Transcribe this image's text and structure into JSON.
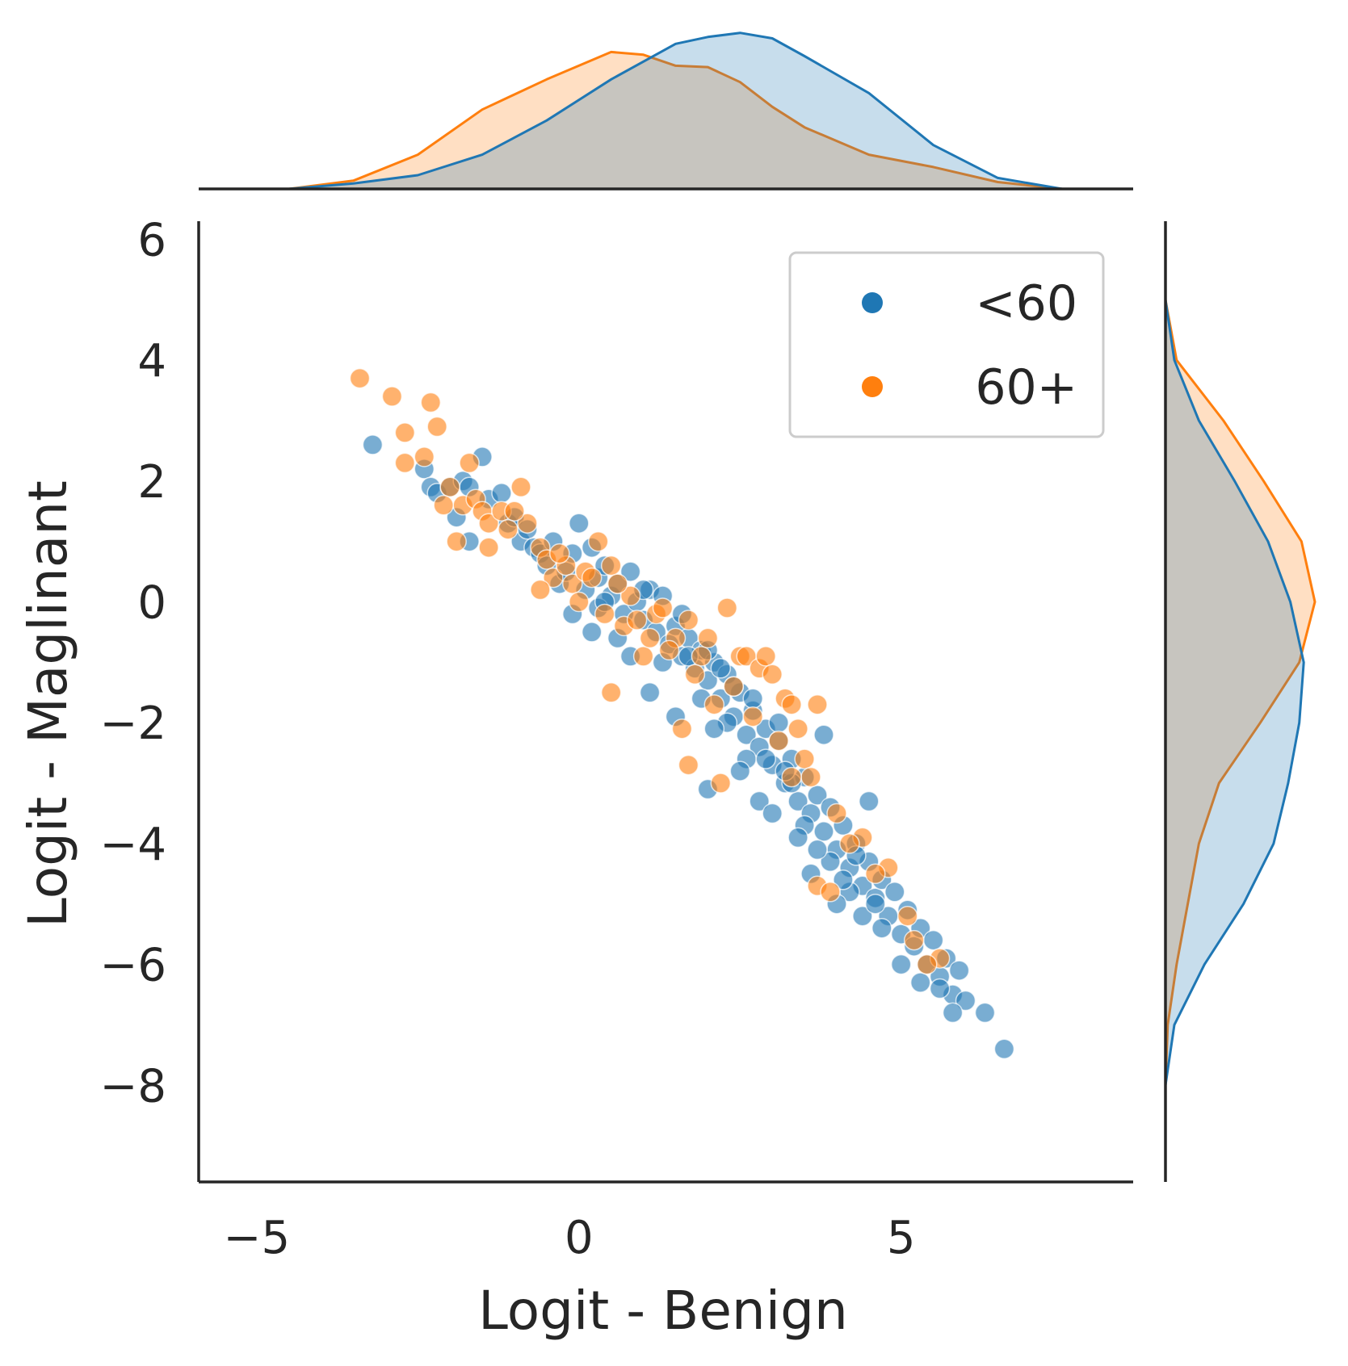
{
  "chart_data": {
    "type": "scatter",
    "title": "",
    "xlabel": "Logit - Benign",
    "ylabel": "Logit - Maglinant",
    "xlim": [
      -5.9,
      8.6
    ],
    "ylim": [
      -9.6,
      6.3
    ],
    "xticks": [
      -5,
      0,
      5
    ],
    "xtick_labels": [
      "−5",
      "0",
      "5"
    ],
    "yticks": [
      6,
      4,
      2,
      0,
      -2,
      -4,
      -6,
      -8
    ],
    "ytick_labels": [
      "6",
      "4",
      "2",
      "0",
      "−2",
      "−4",
      "−6",
      "−8"
    ],
    "grid": false,
    "legend_position": "top-right",
    "marginals": "kde",
    "series": [
      {
        "name": "<60",
        "color": "#1f77b4",
        "points": [
          [
            -3.2,
            2.6
          ],
          [
            -2.4,
            2.2
          ],
          [
            -2.3,
            1.9
          ],
          [
            -2.2,
            1.8
          ],
          [
            -2.0,
            1.9
          ],
          [
            -1.9,
            1.4
          ],
          [
            -1.8,
            2.0
          ],
          [
            -1.7,
            1.9
          ],
          [
            -1.5,
            2.4
          ],
          [
            -1.7,
            1.0
          ],
          [
            -1.4,
            1.7
          ],
          [
            -1.2,
            1.8
          ],
          [
            -1.1,
            1.3
          ],
          [
            -1.0,
            1.4
          ],
          [
            -0.9,
            1.0
          ],
          [
            -0.8,
            1.2
          ],
          [
            -0.7,
            0.9
          ],
          [
            -0.6,
            0.8
          ],
          [
            -0.5,
            0.6
          ],
          [
            -0.4,
            1.0
          ],
          [
            -0.3,
            0.3
          ],
          [
            -0.2,
            0.5
          ],
          [
            -0.1,
            0.8
          ],
          [
            0.0,
            1.3
          ],
          [
            0.1,
            0.2
          ],
          [
            0.2,
            0.9
          ],
          [
            0.3,
            0.4
          ],
          [
            0.4,
            0.6
          ],
          [
            0.5,
            0.1
          ],
          [
            0.6,
            0.3
          ],
          [
            0.7,
            -0.2
          ],
          [
            0.8,
            0.5
          ],
          [
            0.9,
            0.0
          ],
          [
            1.0,
            -0.3
          ],
          [
            1.1,
            0.2
          ],
          [
            1.2,
            -0.5
          ],
          [
            1.3,
            0.1
          ],
          [
            1.4,
            -0.7
          ],
          [
            1.5,
            -0.4
          ],
          [
            1.6,
            -0.9
          ],
          [
            1.7,
            -0.6
          ],
          [
            1.8,
            -1.1
          ],
          [
            1.9,
            -0.8
          ],
          [
            2.0,
            -1.3
          ],
          [
            2.1,
            -1.0
          ],
          [
            2.2,
            -1.6
          ],
          [
            2.3,
            -1.2
          ],
          [
            2.4,
            -1.9
          ],
          [
            2.5,
            -1.5
          ],
          [
            2.6,
            -2.2
          ],
          [
            2.7,
            -1.8
          ],
          [
            2.8,
            -2.4
          ],
          [
            2.9,
            -2.1
          ],
          [
            3.0,
            -2.7
          ],
          [
            3.1,
            -2.3
          ],
          [
            3.2,
            -3.0
          ],
          [
            3.3,
            -2.6
          ],
          [
            3.4,
            -3.3
          ],
          [
            3.5,
            -2.9
          ],
          [
            3.6,
            -3.5
          ],
          [
            3.7,
            -3.2
          ],
          [
            3.8,
            -3.8
          ],
          [
            3.9,
            -3.4
          ],
          [
            4.0,
            -4.1
          ],
          [
            4.1,
            -3.7
          ],
          [
            4.2,
            -4.4
          ],
          [
            4.3,
            -4.0
          ],
          [
            4.4,
            -4.7
          ],
          [
            4.5,
            -4.3
          ],
          [
            4.6,
            -4.9
          ],
          [
            4.7,
            -4.6
          ],
          [
            4.8,
            -5.2
          ],
          [
            4.9,
            -4.8
          ],
          [
            5.0,
            -5.5
          ],
          [
            5.1,
            -5.1
          ],
          [
            5.2,
            -5.7
          ],
          [
            5.3,
            -5.4
          ],
          [
            5.4,
            -6.0
          ],
          [
            5.5,
            -5.6
          ],
          [
            5.6,
            -6.2
          ],
          [
            5.7,
            -5.9
          ],
          [
            5.8,
            -6.5
          ],
          [
            5.9,
            -6.1
          ],
          [
            6.0,
            -6.6
          ],
          [
            6.3,
            -6.8
          ],
          [
            6.6,
            -7.4
          ],
          [
            5.0,
            -6.0
          ],
          [
            4.5,
            -3.3
          ],
          [
            3.8,
            -2.2
          ],
          [
            1.1,
            -1.5
          ],
          [
            0.6,
            -0.6
          ],
          [
            1.5,
            -1.9
          ],
          [
            2.3,
            -2.0
          ],
          [
            2.6,
            -2.6
          ],
          [
            2.8,
            -3.3
          ],
          [
            3.0,
            -3.5
          ],
          [
            3.3,
            -3.0
          ],
          [
            3.5,
            -3.7
          ],
          [
            3.9,
            -4.3
          ],
          [
            4.2,
            -4.8
          ],
          [
            4.4,
            -5.2
          ],
          [
            4.7,
            -5.4
          ],
          [
            2.0,
            -0.8
          ],
          [
            2.4,
            -1.4
          ],
          [
            2.7,
            -1.6
          ],
          [
            3.1,
            -2.0
          ],
          [
            1.6,
            -0.2
          ],
          [
            1.0,
            0.2
          ],
          [
            0.3,
            -0.1
          ],
          [
            -0.1,
            -0.2
          ],
          [
            0.2,
            -0.5
          ],
          [
            0.8,
            -0.9
          ],
          [
            1.3,
            -1.0
          ],
          [
            1.9,
            -1.6
          ],
          [
            2.1,
            -2.1
          ],
          [
            2.5,
            -2.8
          ],
          [
            3.4,
            -3.9
          ],
          [
            3.7,
            -4.1
          ],
          [
            4.1,
            -4.6
          ],
          [
            4.6,
            -5.0
          ],
          [
            5.3,
            -6.3
          ],
          [
            5.6,
            -6.4
          ],
          [
            5.8,
            -6.8
          ],
          [
            3.6,
            -4.5
          ],
          [
            2.0,
            -3.1
          ],
          [
            4.0,
            -5.0
          ],
          [
            0.4,
            0.0
          ],
          [
            1.7,
            -0.9
          ],
          [
            2.2,
            -1.1
          ],
          [
            2.9,
            -2.6
          ],
          [
            3.2,
            -2.8
          ],
          [
            4.3,
            -4.2
          ]
        ]
      },
      {
        "name": "60+",
        "color": "#ff7f0e",
        "points": [
          [
            -3.4,
            3.7
          ],
          [
            -2.9,
            3.4
          ],
          [
            -2.3,
            3.3
          ],
          [
            -2.2,
            2.9
          ],
          [
            -2.7,
            2.8
          ],
          [
            -2.7,
            2.3
          ],
          [
            -2.4,
            2.4
          ],
          [
            -2.0,
            1.9
          ],
          [
            -1.8,
            1.6
          ],
          [
            -1.7,
            2.3
          ],
          [
            -1.6,
            1.7
          ],
          [
            -1.5,
            1.5
          ],
          [
            -1.4,
            1.3
          ],
          [
            -1.2,
            1.5
          ],
          [
            -1.1,
            1.2
          ],
          [
            -0.9,
            1.9
          ],
          [
            -0.8,
            1.3
          ],
          [
            -0.6,
            0.9
          ],
          [
            -0.5,
            0.7
          ],
          [
            -0.4,
            0.4
          ],
          [
            -0.2,
            0.6
          ],
          [
            -0.1,
            0.3
          ],
          [
            0.0,
            0.0
          ],
          [
            0.1,
            0.5
          ],
          [
            0.3,
            1.0
          ],
          [
            0.4,
            -0.2
          ],
          [
            0.5,
            0.6
          ],
          [
            0.7,
            -0.4
          ],
          [
            0.8,
            0.1
          ],
          [
            0.9,
            -0.3
          ],
          [
            1.2,
            -0.2
          ],
          [
            1.5,
            -0.6
          ],
          [
            1.7,
            -0.3
          ],
          [
            1.9,
            -0.9
          ],
          [
            2.0,
            -0.6
          ],
          [
            2.3,
            -0.1
          ],
          [
            2.5,
            -0.9
          ],
          [
            2.6,
            -0.9
          ],
          [
            2.8,
            -1.1
          ],
          [
            2.9,
            -0.9
          ],
          [
            3.0,
            -1.2
          ],
          [
            3.2,
            -1.6
          ],
          [
            3.3,
            -1.7
          ],
          [
            3.4,
            -2.1
          ],
          [
            3.5,
            -2.6
          ],
          [
            3.6,
            -2.9
          ],
          [
            3.7,
            -1.7
          ],
          [
            4.0,
            -3.5
          ],
          [
            4.4,
            -3.9
          ],
          [
            4.8,
            -4.4
          ],
          [
            3.7,
            -4.7
          ],
          [
            3.9,
            -4.8
          ],
          [
            4.6,
            -4.5
          ],
          [
            5.1,
            -5.2
          ],
          [
            5.2,
            -5.6
          ],
          [
            5.6,
            -5.9
          ],
          [
            2.2,
            -3.0
          ],
          [
            1.7,
            -2.7
          ],
          [
            1.6,
            -2.1
          ],
          [
            1.0,
            -0.9
          ],
          [
            0.5,
            -1.5
          ],
          [
            -0.6,
            0.2
          ],
          [
            -1.4,
            0.9
          ],
          [
            -1.9,
            1.0
          ],
          [
            -0.3,
            0.8
          ],
          [
            0.2,
            0.4
          ],
          [
            0.6,
            0.3
          ],
          [
            1.1,
            -0.6
          ],
          [
            1.4,
            -0.8
          ],
          [
            1.8,
            -1.2
          ],
          [
            2.4,
            -1.4
          ],
          [
            2.7,
            -1.9
          ],
          [
            3.1,
            -2.3
          ],
          [
            3.3,
            -2.9
          ],
          [
            4.2,
            -4.0
          ],
          [
            5.4,
            -6.0
          ],
          [
            2.1,
            -1.7
          ],
          [
            1.3,
            -0.1
          ],
          [
            -1.0,
            1.5
          ],
          [
            -2.1,
            1.6
          ]
        ]
      }
    ],
    "top_marginal_kde": {
      "<60": {
        "x": [
          -4.5,
          -3.5,
          -2.5,
          -1.5,
          -0.5,
          0.5,
          1.5,
          2.0,
          2.5,
          3.0,
          3.5,
          4.5,
          5.5,
          6.5,
          7.5
        ],
        "density": [
          0.0,
          0.004,
          0.01,
          0.025,
          0.05,
          0.08,
          0.106,
          0.111,
          0.114,
          0.11,
          0.097,
          0.07,
          0.032,
          0.008,
          0.0
        ]
      },
      "60+": {
        "x": [
          -4.5,
          -3.5,
          -2.5,
          -1.5,
          -0.5,
          0.5,
          1.0,
          1.5,
          2.0,
          2.5,
          3.0,
          3.5,
          4.5,
          5.5,
          6.5,
          7.5
        ],
        "density": [
          0.0,
          0.006,
          0.025,
          0.058,
          0.08,
          0.1,
          0.098,
          0.09,
          0.089,
          0.078,
          0.06,
          0.045,
          0.025,
          0.016,
          0.005,
          0.0
        ]
      }
    },
    "right_marginal_kde": {
      "<60": {
        "y": [
          5.0,
          4.0,
          3.0,
          2.0,
          1.0,
          0.0,
          -1.0,
          -2.0,
          -3.0,
          -4.0,
          -5.0,
          -6.0,
          -7.0,
          -8.0
        ],
        "density": [
          0.0,
          0.008,
          0.03,
          0.062,
          0.092,
          0.112,
          0.124,
          0.12,
          0.11,
          0.097,
          0.07,
          0.035,
          0.008,
          0.0
        ]
      },
      "60+": {
        "y": [
          5.0,
          4.0,
          3.0,
          2.0,
          1.0,
          0.0,
          -1.0,
          -2.0,
          -3.0,
          -4.0,
          -5.0,
          -6.0,
          -7.0,
          -8.0
        ],
        "density": [
          0.0,
          0.01,
          0.052,
          0.088,
          0.122,
          0.134,
          0.12,
          0.085,
          0.048,
          0.03,
          0.02,
          0.01,
          0.002,
          0.0
        ]
      }
    }
  }
}
